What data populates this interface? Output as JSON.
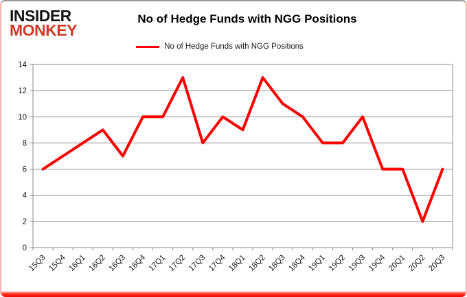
{
  "logo": {
    "line1": "INSIDER",
    "line2": "MONKEY"
  },
  "header": {
    "title": "No of Hedge Funds with NGG Positions"
  },
  "legend": {
    "label": "No of Hedge Funds with NGG Positions"
  },
  "colors": {
    "line": "#ff0000",
    "grid": "#8a8a8a",
    "logo_red": "#d13a28",
    "bottom_bar_red": "#eb0a00"
  },
  "chart_data": {
    "type": "line",
    "title": "No of Hedge Funds with NGG Positions",
    "categories": [
      "15Q3",
      "15Q4",
      "16Q1",
      "16Q2",
      "16Q3",
      "16Q4",
      "17Q1",
      "17Q2",
      "17Q3",
      "17Q4",
      "18Q1",
      "18Q2",
      "18Q3",
      "18Q4",
      "19Q1",
      "19Q2",
      "19Q3",
      "19Q4",
      "20Q1",
      "20Q2",
      "20Q3"
    ],
    "series": [
      {
        "name": "No of Hedge Funds with NGG Positions",
        "color": "#ff0000",
        "values": [
          6,
          7,
          8,
          9,
          7,
          10,
          10,
          13,
          8,
          10,
          9,
          13,
          11,
          10,
          8,
          8,
          10,
          6,
          6,
          2,
          6
        ]
      }
    ],
    "xlabel": "",
    "ylabel": "",
    "ylim": [
      0,
      14
    ],
    "y_ticks": [
      0,
      2,
      4,
      6,
      8,
      10,
      12,
      14
    ],
    "grid": true,
    "legend_position": "top"
  }
}
